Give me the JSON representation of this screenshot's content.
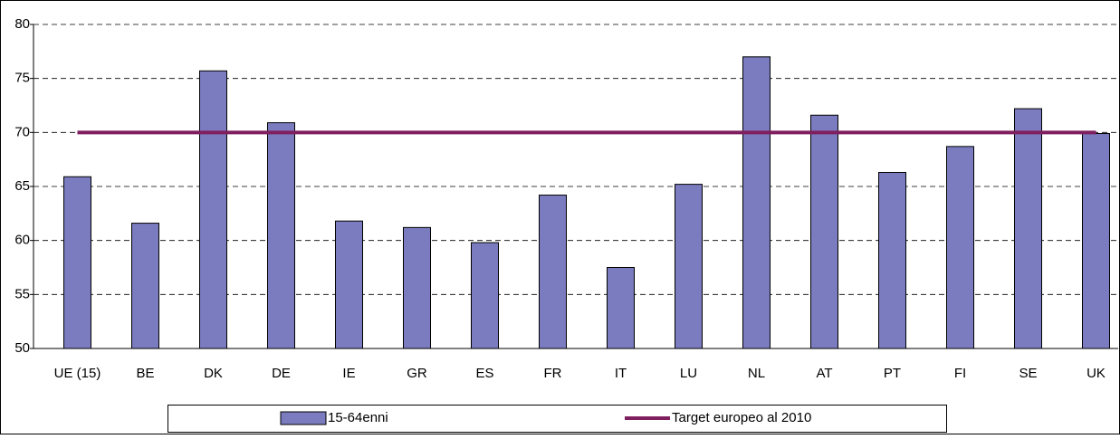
{
  "chart_data": {
    "type": "bar",
    "categories": [
      "UE (15)",
      "BE",
      "DK",
      "DE",
      "IE",
      "GR",
      "ES",
      "FR",
      "IT",
      "LU",
      "NL",
      "AT",
      "PT",
      "FI",
      "SE",
      "UK"
    ],
    "series": [
      {
        "name": "15-64enni",
        "color": "#7b7bbf",
        "type": "bar",
        "values": [
          65.9,
          61.6,
          75.7,
          70.9,
          61.8,
          61.2,
          59.8,
          64.2,
          57.5,
          65.2,
          77.0,
          71.6,
          66.3,
          68.7,
          72.2,
          69.9
        ]
      },
      {
        "name": "Target europeo al 2010",
        "color": "#7f1f5f",
        "type": "line",
        "values": [
          70,
          70,
          70,
          70,
          70,
          70,
          70,
          70,
          70,
          70,
          70,
          70,
          70,
          70,
          70,
          70
        ]
      }
    ],
    "ylim": [
      50,
      80
    ],
    "yticks": [
      50,
      55,
      60,
      65,
      70,
      75,
      80
    ],
    "grid": true
  }
}
